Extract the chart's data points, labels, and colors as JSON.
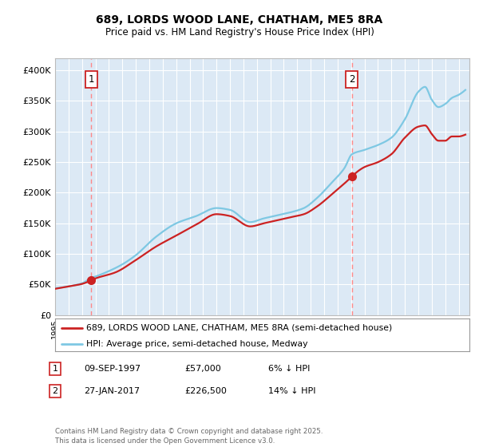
{
  "title": "689, LORDS WOOD LANE, CHATHAM, ME5 8RA",
  "subtitle": "Price paid vs. HM Land Registry's House Price Index (HPI)",
  "background_color": "#ffffff",
  "plot_bg_color": "#dce9f5",
  "grid_color": "#ffffff",
  "ylim": [
    0,
    420000
  ],
  "yticks": [
    0,
    50000,
    100000,
    150000,
    200000,
    250000,
    300000,
    350000,
    400000
  ],
  "ytick_labels": [
    "£0",
    "£50K",
    "£100K",
    "£150K",
    "£200K",
    "£250K",
    "£300K",
    "£350K",
    "£400K"
  ],
  "xlim_min": 1995.0,
  "xlim_max": 2025.8,
  "sale1_date": 1997.69,
  "sale1_price": 57000,
  "sale2_date": 2017.07,
  "sale2_price": 226500,
  "legend_house": "689, LORDS WOOD LANE, CHATHAM, ME5 8RA (semi-detached house)",
  "legend_hpi": "HPI: Average price, semi-detached house, Medway",
  "ann1_date": "09-SEP-1997",
  "ann1_price": "£57,000",
  "ann1_pct": "6% ↓ HPI",
  "ann2_date": "27-JAN-2017",
  "ann2_price": "£226,500",
  "ann2_pct": "14% ↓ HPI",
  "footer": "Contains HM Land Registry data © Crown copyright and database right 2025.\nThis data is licensed under the Open Government Licence v3.0.",
  "hpi_color": "#7ec8e3",
  "house_color": "#cc2222",
  "vline_color": "#ff8888",
  "marker_color": "#cc2222",
  "ann_box_color": "#cc2222"
}
